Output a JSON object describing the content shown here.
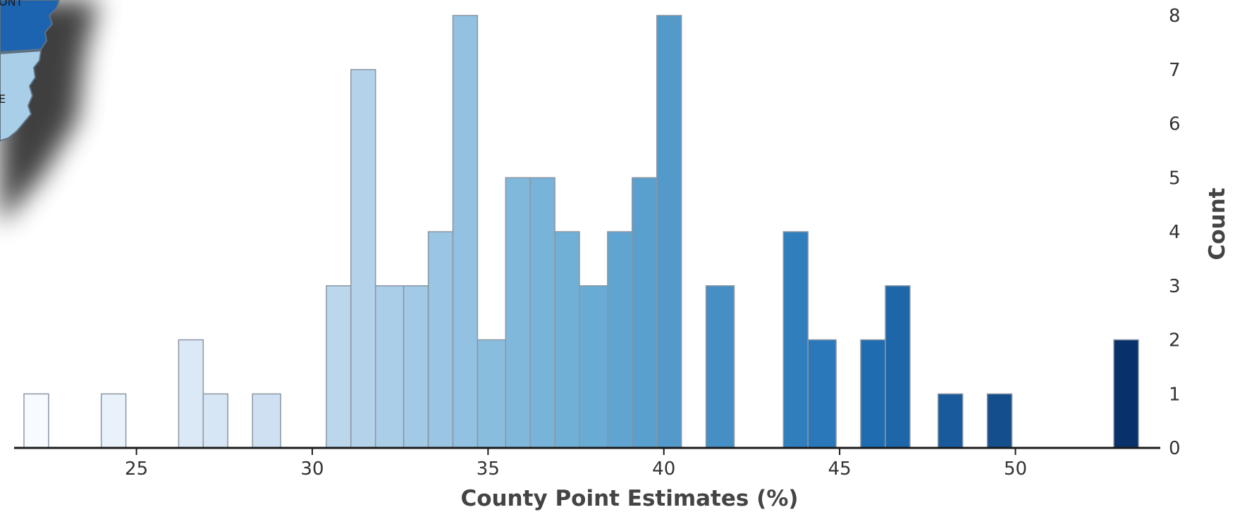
{
  "chart_data": {
    "type": "bar",
    "subtype": "histogram",
    "xlabel": "County Point Estimates (%)",
    "ylabel": "Count",
    "x_ticks": [
      25,
      30,
      35,
      40,
      45,
      50
    ],
    "y_ticks": [
      0,
      1,
      2,
      3,
      4,
      5,
      6,
      7,
      8
    ],
    "xlim": [
      21.6,
      54.0
    ],
    "ylim": [
      0,
      8
    ],
    "y_axis_side": "right",
    "grid": false,
    "color_scale": "sequential-blues",
    "bins": [
      {
        "x0": 21.8,
        "x1": 22.5,
        "count": 1
      },
      {
        "x0": 24.0,
        "x1": 24.7,
        "count": 1
      },
      {
        "x0": 26.2,
        "x1": 26.9,
        "count": 2
      },
      {
        "x0": 26.9,
        "x1": 27.6,
        "count": 1
      },
      {
        "x0": 28.3,
        "x1": 29.1,
        "count": 1
      },
      {
        "x0": 30.4,
        "x1": 31.1,
        "count": 3
      },
      {
        "x0": 31.1,
        "x1": 31.8,
        "count": 7
      },
      {
        "x0": 31.8,
        "x1": 32.6,
        "count": 3
      },
      {
        "x0": 32.6,
        "x1": 33.3,
        "count": 3
      },
      {
        "x0": 33.3,
        "x1": 34.0,
        "count": 4
      },
      {
        "x0": 34.0,
        "x1": 34.7,
        "count": 8
      },
      {
        "x0": 34.7,
        "x1": 35.5,
        "count": 2
      },
      {
        "x0": 35.5,
        "x1": 36.2,
        "count": 5
      },
      {
        "x0": 36.2,
        "x1": 36.9,
        "count": 5
      },
      {
        "x0": 36.9,
        "x1": 37.6,
        "count": 4
      },
      {
        "x0": 37.6,
        "x1": 38.4,
        "count": 3
      },
      {
        "x0": 38.4,
        "x1": 39.1,
        "count": 4
      },
      {
        "x0": 39.1,
        "x1": 39.8,
        "count": 5
      },
      {
        "x0": 39.8,
        "x1": 40.5,
        "count": 8
      },
      {
        "x0": 41.2,
        "x1": 42.0,
        "count": 3
      },
      {
        "x0": 43.4,
        "x1": 44.1,
        "count": 4
      },
      {
        "x0": 44.1,
        "x1": 44.9,
        "count": 2
      },
      {
        "x0": 45.6,
        "x1": 46.3,
        "count": 2
      },
      {
        "x0": 46.3,
        "x1": 47.0,
        "count": 3
      },
      {
        "x0": 47.8,
        "x1": 48.5,
        "count": 1
      },
      {
        "x0": 49.2,
        "x1": 49.9,
        "count": 1
      },
      {
        "x0": 52.8,
        "x1": 53.5,
        "count": 2
      }
    ]
  },
  "map_inset": {
    "labels": [
      "ONT",
      "E"
    ],
    "colors": [
      "#1c64b0",
      "#a9cfe8"
    ]
  }
}
